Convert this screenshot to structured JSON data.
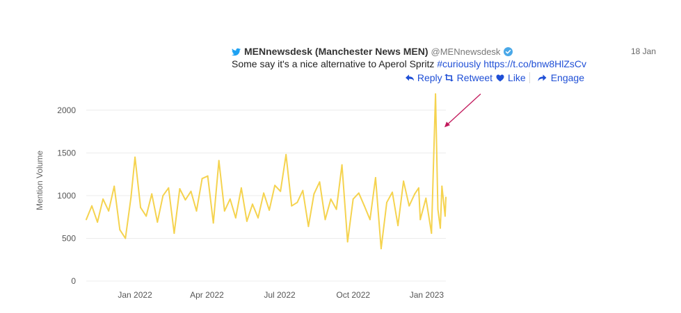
{
  "tweet": {
    "author_name": "MENnewsdesk (Manchester News MEN)",
    "handle": "@MENnewsdesk",
    "date": "18 Jan",
    "text_prefix": "Some say it's a nice alternative to Aperol Spritz",
    "hashtag": "#curiously",
    "link": "https://t.co/bnw8HlZsCv",
    "actions": {
      "reply": "Reply",
      "retweet": "Retweet",
      "like": "Like",
      "engage": "Engage"
    }
  },
  "colors": {
    "line": "#f5d34f",
    "accent": "#1f4fd6",
    "annotation_arrow": "#c2185b",
    "bird": "#1da1f2",
    "verified": "#4aa8e8"
  },
  "chart_data": {
    "type": "line",
    "title": "",
    "xlabel": "",
    "ylabel": "Mention Volume",
    "ylim": [
      0,
      2250
    ],
    "yticks": [
      0,
      500,
      1000,
      1500,
      2000
    ],
    "xticks": [
      "Jan 2022",
      "Apr 2022",
      "Jul 2022",
      "Oct 2022",
      "Jan 2023"
    ],
    "x_start": "2021-11-01",
    "x_end": "2023-01-25",
    "grid": true,
    "legend": "none",
    "series": [
      {
        "x": [
          "2021-11-01",
          "2021-11-08",
          "2021-11-15",
          "2021-11-22",
          "2021-11-29",
          "2021-12-06",
          "2021-12-13",
          "2021-12-20",
          "2021-12-27",
          "2022-01-01",
          "2022-01-08",
          "2022-01-15",
          "2022-01-22",
          "2022-01-29",
          "2022-02-05",
          "2022-02-12",
          "2022-02-19",
          "2022-02-26",
          "2022-03-05",
          "2022-03-12",
          "2022-03-19",
          "2022-03-26",
          "2022-04-02",
          "2022-04-09",
          "2022-04-16",
          "2022-04-23",
          "2022-04-30",
          "2022-05-07",
          "2022-05-14",
          "2022-05-21",
          "2022-05-28",
          "2022-06-04",
          "2022-06-11",
          "2022-06-18",
          "2022-06-25",
          "2022-07-02",
          "2022-07-09",
          "2022-07-16",
          "2022-07-23",
          "2022-07-30",
          "2022-08-06",
          "2022-08-13",
          "2022-08-20",
          "2022-08-27",
          "2022-09-03",
          "2022-09-10",
          "2022-09-17",
          "2022-09-24",
          "2022-10-01",
          "2022-10-08",
          "2022-10-15",
          "2022-10-22",
          "2022-10-29",
          "2022-11-05",
          "2022-11-12",
          "2022-11-19",
          "2022-11-26",
          "2022-12-03",
          "2022-12-10",
          "2022-12-17",
          "2022-12-22",
          "2022-12-24",
          "2022-12-31",
          "2023-01-07",
          "2023-01-12",
          "2023-01-15",
          "2023-01-18",
          "2023-01-20",
          "2023-01-24",
          "2023-01-25"
        ],
        "y": [
          720,
          880,
          690,
          960,
          820,
          1110,
          600,
          500,
          980,
          1450,
          860,
          760,
          1020,
          690,
          1000,
          1090,
          560,
          1080,
          950,
          1050,
          820,
          1200,
          1230,
          680,
          1410,
          820,
          960,
          740,
          1090,
          700,
          900,
          740,
          1030,
          830,
          1120,
          1050,
          1480,
          880,
          920,
          1060,
          640,
          1020,
          1160,
          720,
          960,
          840,
          1360,
          460,
          960,
          1030,
          880,
          720,
          1210,
          380,
          920,
          1040,
          650,
          1170,
          880,
          1020,
          1090,
          720,
          970,
          560,
          2190,
          840,
          620,
          1110,
          760,
          980
        ]
      }
    ]
  }
}
